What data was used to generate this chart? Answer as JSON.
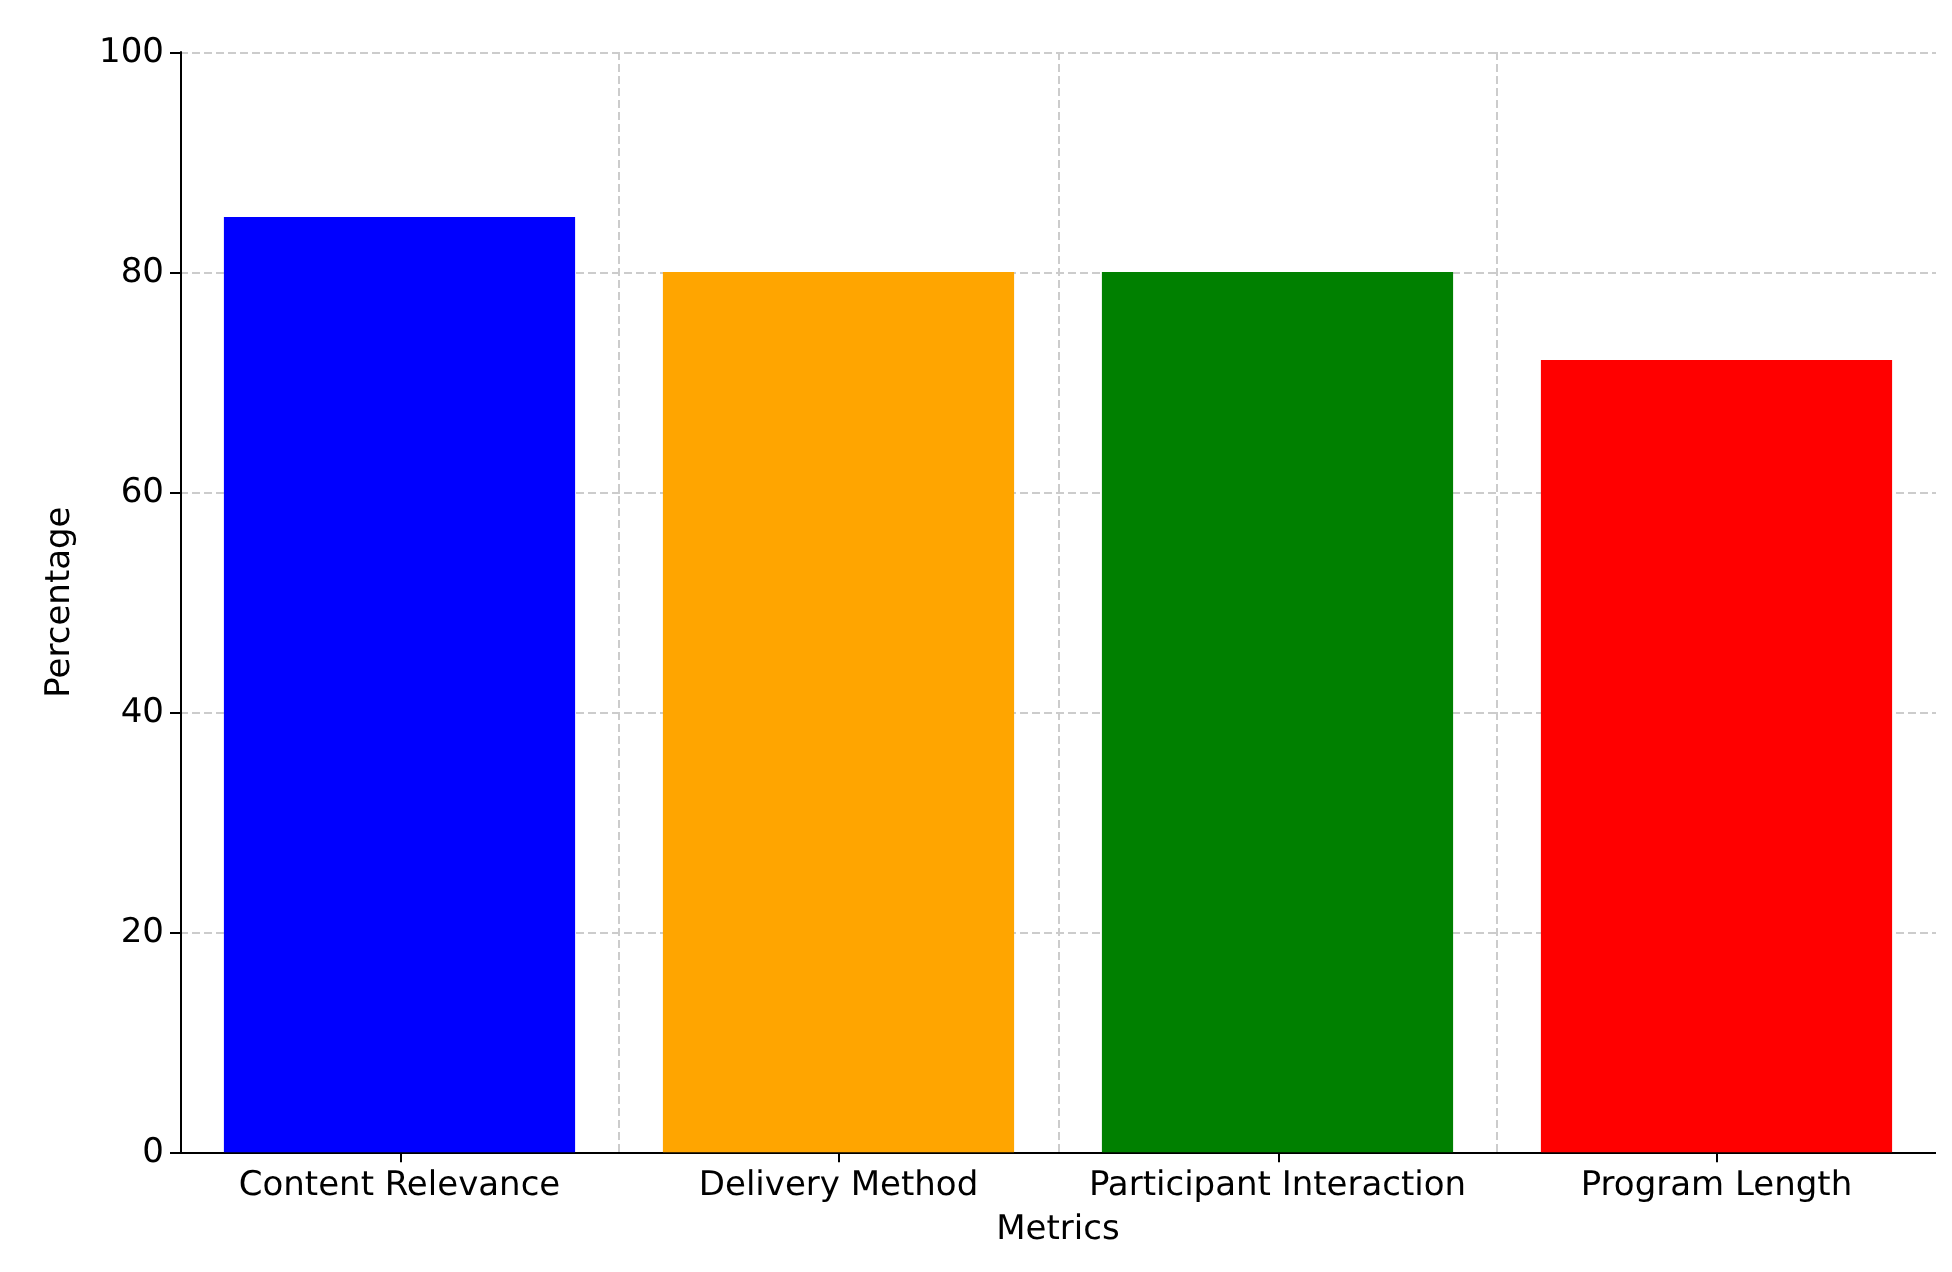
{
  "chart_data": {
    "type": "bar",
    "xlabel": "Metrics",
    "ylabel": "Percentage",
    "categories": [
      "Content Relevance",
      "Delivery Method",
      "Participant Interaction",
      "Program Length"
    ],
    "values": [
      85,
      80,
      80,
      72
    ],
    "colors": [
      "#0000ff",
      "#ffa500",
      "#008000",
      "#ff0000"
    ],
    "ylim": [
      0,
      100
    ],
    "yticks": [
      0,
      20,
      40,
      60,
      80,
      100
    ],
    "grid": true
  }
}
